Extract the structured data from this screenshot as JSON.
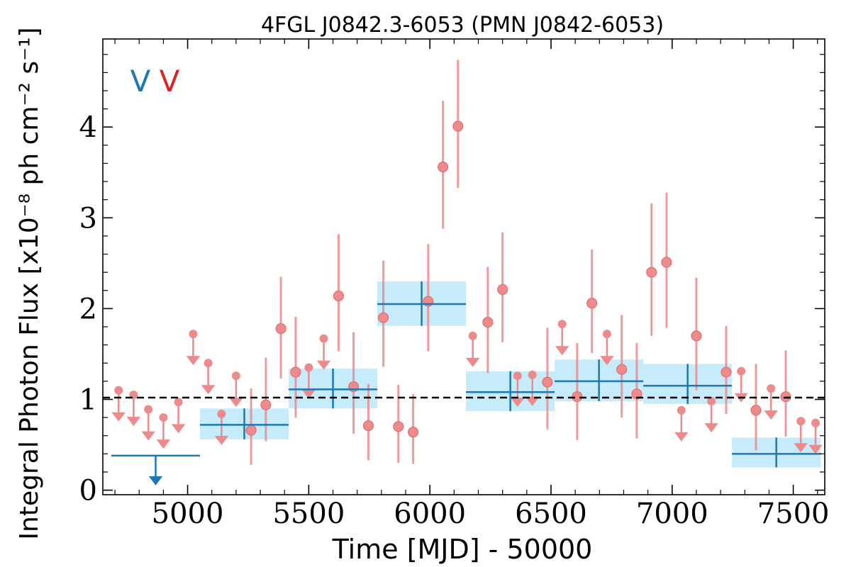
{
  "chart_data": {
    "type": "scatter",
    "title": "4FGL J0842.3-6053 (PMN J0842-6053)",
    "xlabel": "Time [MJD] - 50000",
    "ylabel": "Integral Photon Flux [x10⁻⁸ ph cm⁻² s⁻¹]",
    "xlim": [
      4650,
      7630
    ],
    "ylim": [
      -0.05,
      4.97
    ],
    "x_ticks": [
      5000,
      5500,
      6000,
      6500,
      7000,
      7500
    ],
    "y_ticks": [
      0,
      1,
      2,
      3,
      4
    ],
    "grid": false,
    "mean_line": 1.02,
    "annotations": [
      {
        "text": "V",
        "color": "#1f77b4"
      },
      {
        "text": "V",
        "color": "#d62728"
      }
    ],
    "colors": {
      "fine": "#ec8a8c",
      "coarse": "#1f77b4",
      "coarse_band": "#c6ebfb",
      "mean_line": "#000000"
    },
    "fine_points": [
      {
        "x": 4715,
        "y": 1.1,
        "ul": true
      },
      {
        "x": 4777,
        "y": 1.05,
        "ul": true
      },
      {
        "x": 4838,
        "y": 0.89,
        "ul": true
      },
      {
        "x": 4900,
        "y": 0.8,
        "ul": true
      },
      {
        "x": 4962,
        "y": 0.97,
        "ul": true
      },
      {
        "x": 5023,
        "y": 1.72,
        "ul": true
      },
      {
        "x": 5085,
        "y": 1.4,
        "ul": true
      },
      {
        "x": 5140,
        "y": 0.84,
        "ul": true
      },
      {
        "x": 5200,
        "y": 1.26,
        "ul": true
      },
      {
        "x": 5262,
        "y": 0.66,
        "yerr": [
          0.38,
          0.46
        ]
      },
      {
        "x": 5323,
        "y": 0.94,
        "yerr": [
          0.4,
          0.52
        ]
      },
      {
        "x": 5385,
        "y": 1.78,
        "yerr": [
          0.55,
          0.57
        ]
      },
      {
        "x": 5446,
        "y": 1.3,
        "yerr": [
          0.5,
          0.61
        ]
      },
      {
        "x": 5500,
        "y": 1.35,
        "ul": true
      },
      {
        "x": 5562,
        "y": 1.67,
        "ul": true
      },
      {
        "x": 5623,
        "y": 2.14,
        "yerr": [
          0.61,
          0.68
        ]
      },
      {
        "x": 5685,
        "y": 1.14,
        "yerr": [
          0.52,
          0.6
        ]
      },
      {
        "x": 5746,
        "y": 0.71,
        "yerr": [
          0.38,
          0.46
        ]
      },
      {
        "x": 5808,
        "y": 1.9,
        "yerr": [
          0.54,
          0.63
        ]
      },
      {
        "x": 5870,
        "y": 0.7,
        "yerr": [
          0.4,
          0.46
        ]
      },
      {
        "x": 5931,
        "y": 0.64,
        "yerr": [
          0.35,
          0.42
        ]
      },
      {
        "x": 5993,
        "y": 2.08,
        "yerr": [
          0.55,
          0.63
        ]
      },
      {
        "x": 6054,
        "y": 3.56,
        "yerr": [
          0.68,
          0.73
        ]
      },
      {
        "x": 6116,
        "y": 4.01,
        "yerr": [
          0.68,
          0.73
        ]
      },
      {
        "x": 6177,
        "y": 1.7,
        "ul": true
      },
      {
        "x": 6239,
        "y": 1.85,
        "yerr": [
          0.56,
          0.61
        ]
      },
      {
        "x": 6300,
        "y": 2.21,
        "yerr": [
          0.58,
          0.63
        ]
      },
      {
        "x": 6362,
        "y": 1.26,
        "ul": true
      },
      {
        "x": 6423,
        "y": 1.27,
        "ul": true
      },
      {
        "x": 6485,
        "y": 1.19,
        "yerr": [
          0.52,
          0.6
        ]
      },
      {
        "x": 6546,
        "y": 1.83,
        "ul": true
      },
      {
        "x": 6608,
        "y": 1.03,
        "yerr": [
          0.48,
          0.59
        ]
      },
      {
        "x": 6669,
        "y": 2.06,
        "yerr": [
          0.55,
          0.59
        ]
      },
      {
        "x": 6731,
        "y": 1.72,
        "ul": true
      },
      {
        "x": 6792,
        "y": 1.33,
        "yerr": [
          0.53,
          0.6
        ]
      },
      {
        "x": 6854,
        "y": 1.06,
        "yerr": [
          0.49,
          0.56
        ]
      },
      {
        "x": 6915,
        "y": 2.4,
        "yerr": [
          0.7,
          0.76
        ]
      },
      {
        "x": 6977,
        "y": 2.51,
        "yerr": [
          0.72,
          0.77
        ]
      },
      {
        "x": 7038,
        "y": 0.88,
        "ul": true
      },
      {
        "x": 7100,
        "y": 1.7,
        "yerr": [
          0.6,
          0.64
        ]
      },
      {
        "x": 7162,
        "y": 0.98,
        "ul": true
      },
      {
        "x": 7223,
        "y": 1.3,
        "yerr": [
          0.46,
          0.51
        ]
      },
      {
        "x": 7285,
        "y": 1.31,
        "ul": true
      },
      {
        "x": 7346,
        "y": 0.88,
        "yerr": [
          0.44,
          0.51
        ]
      },
      {
        "x": 7408,
        "y": 1.12,
        "ul": true
      },
      {
        "x": 7469,
        "y": 1.03,
        "yerr": [
          0.44,
          0.51
        ]
      },
      {
        "x": 7531,
        "y": 0.76,
        "ul": true
      },
      {
        "x": 7592,
        "y": 0.74,
        "ul": true
      }
    ],
    "coarse_bins": [
      {
        "x": 4868,
        "x0": 4685,
        "x1": 5051,
        "y": 0.38,
        "ul": true
      },
      {
        "x": 5234,
        "x0": 5051,
        "x1": 5417,
        "y": 0.72,
        "yerr": [
          0.16,
          0.18
        ]
      },
      {
        "x": 5600,
        "x0": 5417,
        "x1": 5783,
        "y": 1.11,
        "yerr": [
          0.21,
          0.23
        ]
      },
      {
        "x": 5966,
        "x0": 5783,
        "x1": 6149,
        "y": 2.05,
        "yerr": [
          0.24,
          0.25
        ]
      },
      {
        "x": 6332,
        "x0": 6149,
        "x1": 6515,
        "y": 1.08,
        "yerr": [
          0.21,
          0.23
        ]
      },
      {
        "x": 6698,
        "x0": 6515,
        "x1": 6881,
        "y": 1.2,
        "yerr": [
          0.22,
          0.24
        ]
      },
      {
        "x": 7064,
        "x0": 6881,
        "x1": 7247,
        "y": 1.15,
        "yerr": [
          0.2,
          0.24
        ]
      },
      {
        "x": 7430,
        "x0": 7247,
        "x1": 7613,
        "y": 0.4,
        "yerr": [
          0.15,
          0.18
        ]
      }
    ]
  }
}
